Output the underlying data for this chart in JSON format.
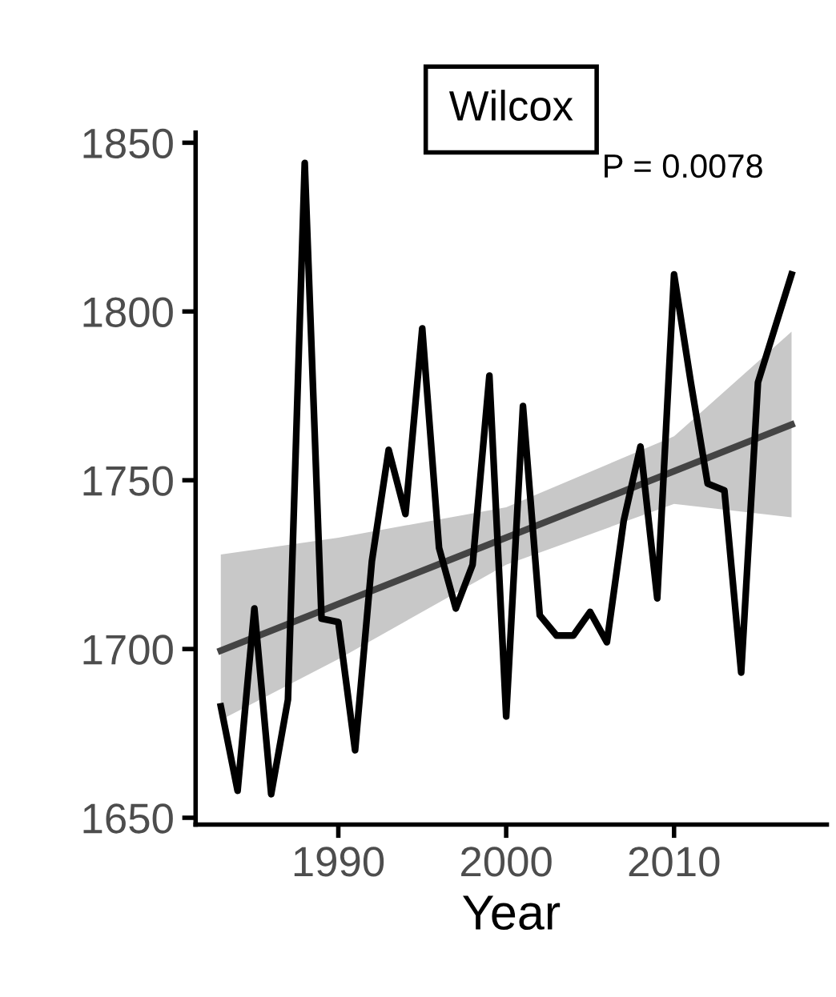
{
  "chart_data": {
    "type": "line",
    "title": "Wilcox",
    "xlabel": "Year",
    "annotations": [
      "P = 0.0078"
    ],
    "xlim": [
      1981.5,
      2019.1
    ],
    "xticks": [
      1990,
      2000,
      2010
    ],
    "ylim": [
      1648,
      1853
    ],
    "yticks": [
      1650,
      1700,
      1750,
      1800,
      1850
    ],
    "grid": false,
    "legend": false,
    "marker": "none",
    "line_style": "solid",
    "series": [
      {
        "color": "#000000",
        "x": [
          1983,
          1984,
          1985,
          1986,
          1987,
          1988,
          1989,
          1990,
          1991,
          1992,
          1993,
          1994,
          1995,
          1996,
          1997,
          1998,
          1999,
          2000,
          2001,
          2002,
          2003,
          2004,
          2005,
          2006,
          2007,
          2008,
          2009,
          2010,
          2011,
          2012,
          2013,
          2014,
          2015,
          2016,
          2017
        ],
        "values": [
          1683,
          1658,
          1712,
          1657,
          1685,
          1844,
          1709,
          1708,
          1670,
          1726,
          1759,
          1740,
          1795,
          1730,
          1712,
          1725,
          1781,
          1680,
          1772,
          1710,
          1704,
          1704,
          1711,
          1702,
          1738,
          1760,
          1715,
          1811,
          1779,
          1749,
          1747,
          1693,
          1779,
          1795,
          1811
        ]
      },
      {
        "type": "line",
        "color": "#444444",
        "x": [
          1983,
          1990,
          2000,
          2010,
          2017
        ],
        "values": [
          1699.5,
          1713.3,
          1733,
          1752.7,
          1766.5
        ],
        "lower": [
          1679,
          1697,
          1725,
          1743,
          1739
        ],
        "upper": [
          1728,
          1733,
          1742,
          1763,
          1794
        ]
      }
    ]
  }
}
